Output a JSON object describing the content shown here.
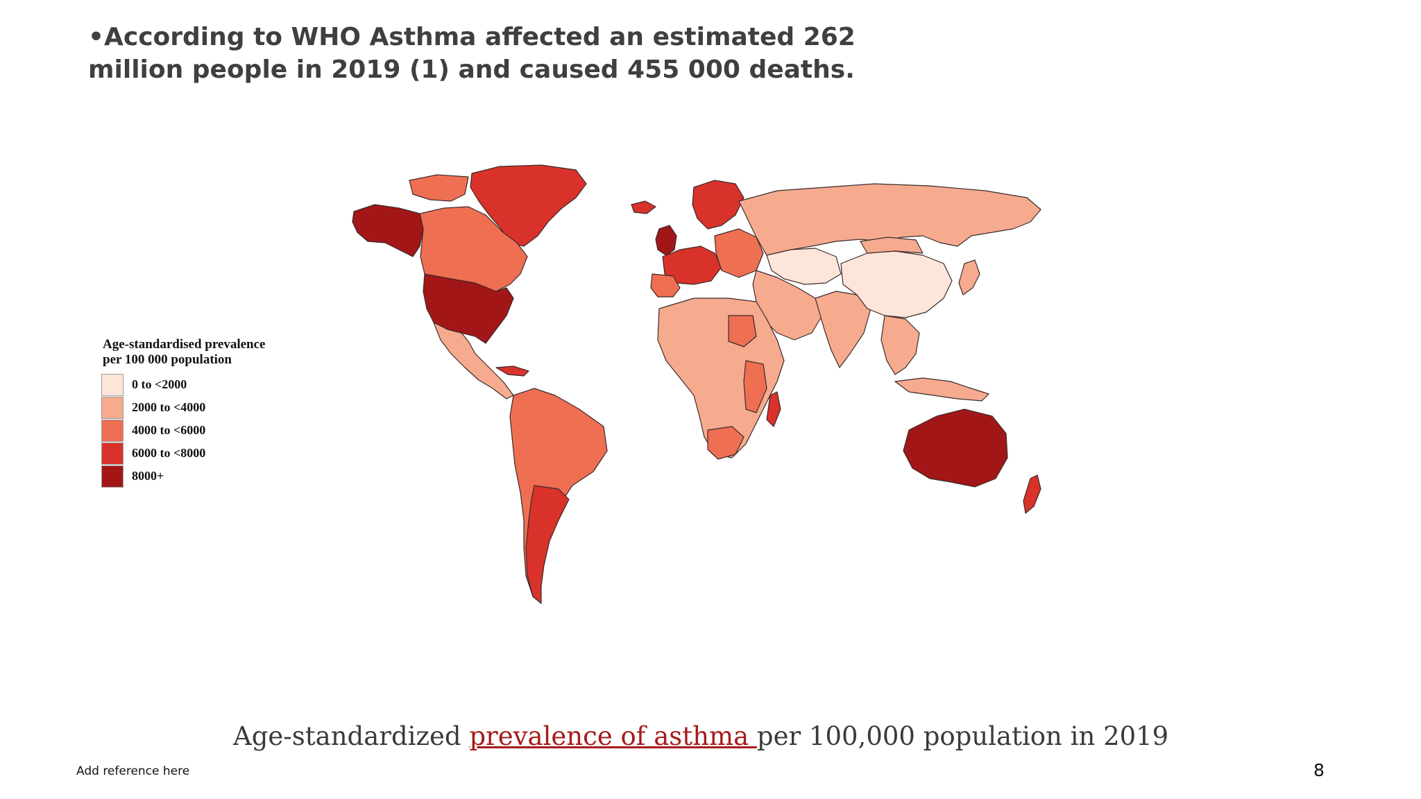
{
  "slide": {
    "headline": "•According to WHO Asthma affected an estimated 262 million people in 2019 (1) and caused 455 000 deaths.",
    "caption_before": "Age-standardized ",
    "caption_link": "prevalence of asthma ",
    "caption_after": "per 100,000 population in 2019",
    "reference": "Add reference here",
    "page_number": "8"
  },
  "legend": {
    "title_line1": "Age-standardised prevalence",
    "title_line2": "per 100 000 population",
    "items": [
      {
        "label": "0 to <2000",
        "color": "#fde5da"
      },
      {
        "label": "2000 to <4000",
        "color": "#f6ab8f"
      },
      {
        "label": "4000 to <6000",
        "color": "#ef6f52"
      },
      {
        "label": "6000 to <8000",
        "color": "#d8322a"
      },
      {
        "label": "8000+",
        "color": "#a31618"
      }
    ]
  },
  "colors": {
    "headline": "#3f3f3f",
    "caption_link": "#a61b1b",
    "border": "#3a2a2a"
  }
}
